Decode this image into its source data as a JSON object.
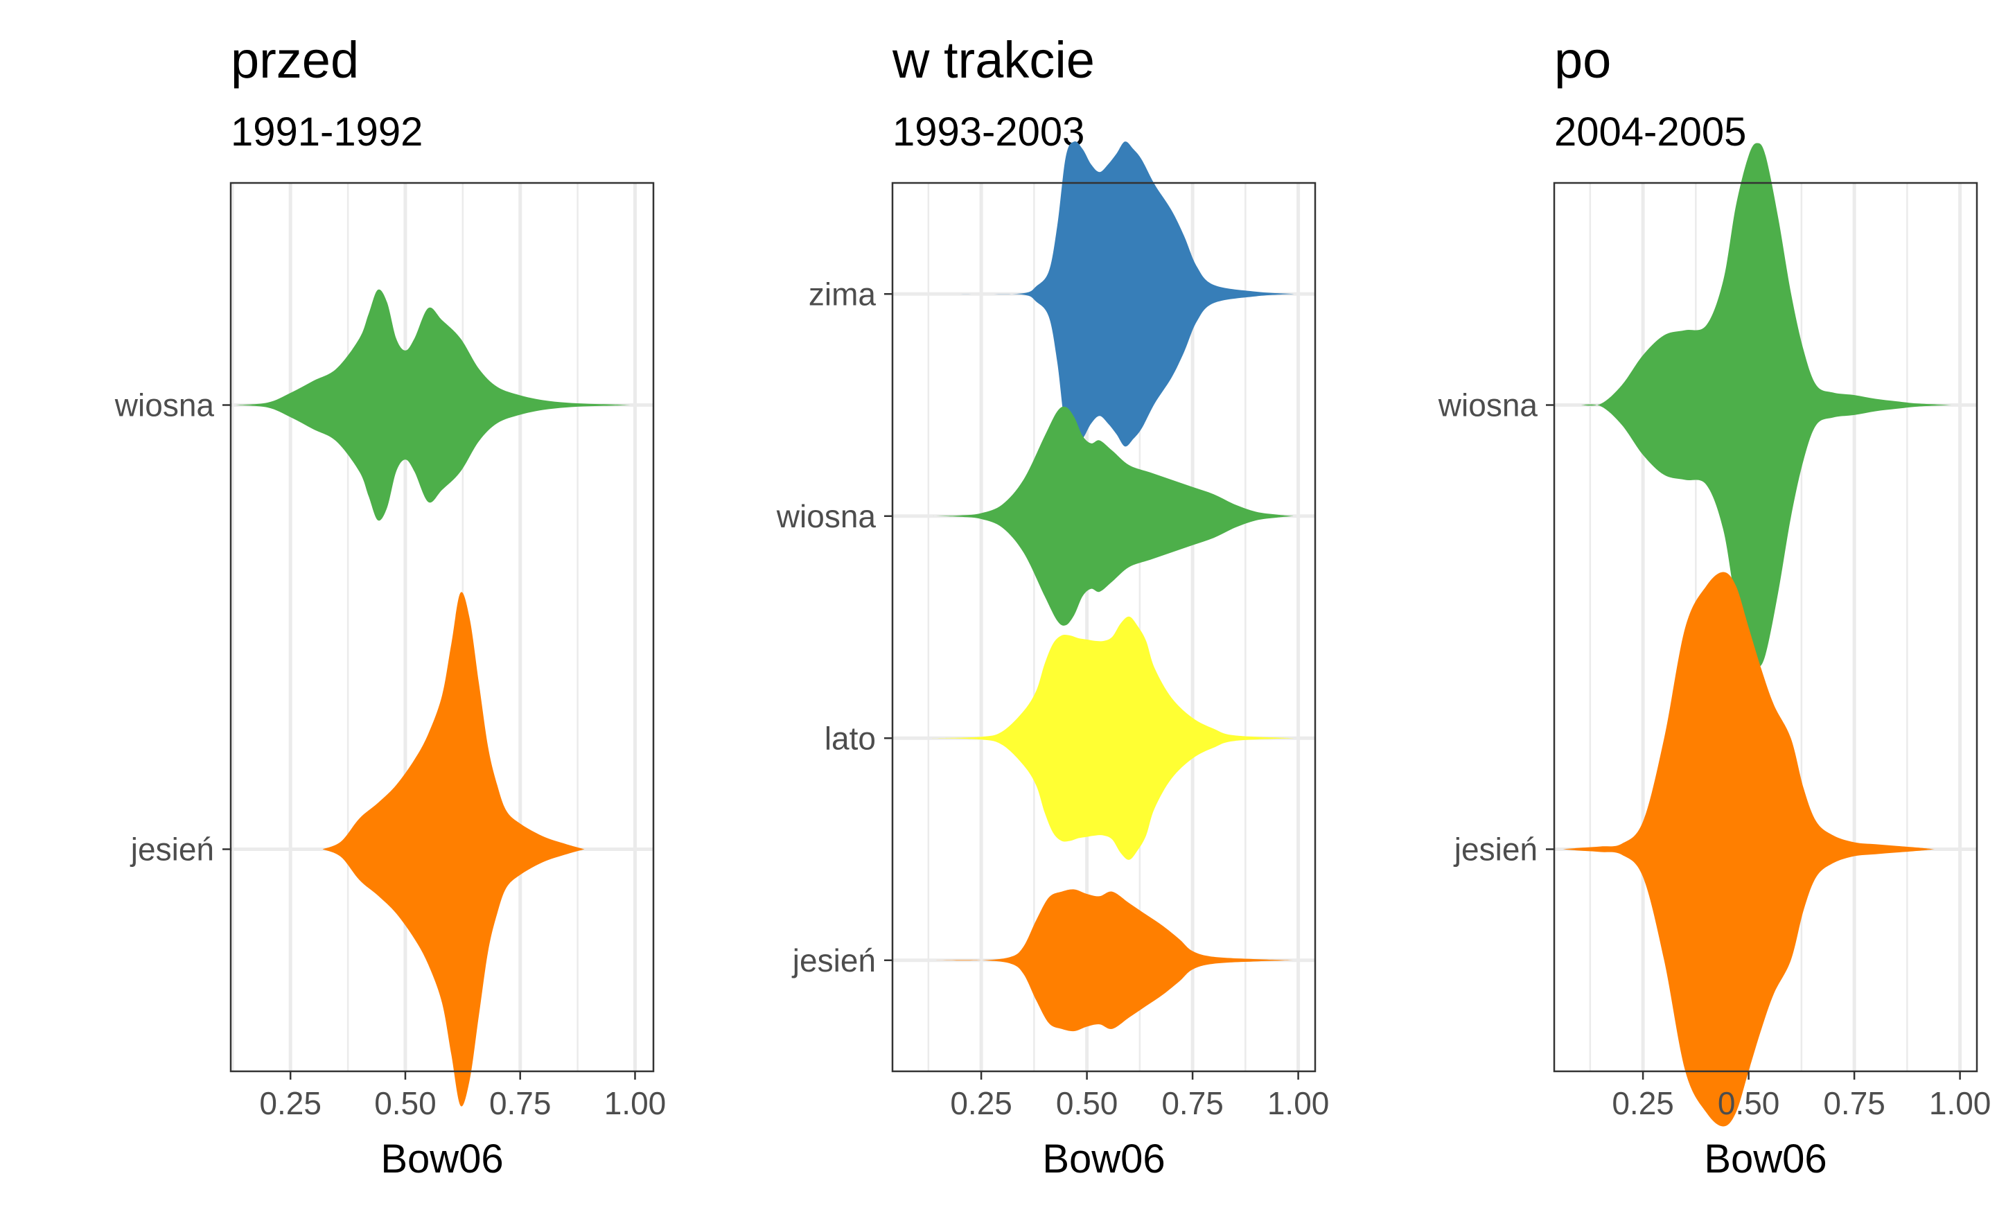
{
  "chart_data": [
    {
      "type": "violin",
      "title": "przed",
      "subtitle": "1991-1992",
      "xlabel": "Bow06",
      "ylabel": "",
      "xlim": [
        0.12,
        1.04
      ],
      "xticks": [
        "0.25",
        "0.50",
        "0.75",
        "1.00"
      ],
      "xtick_values": [
        0.25,
        0.5,
        0.75,
        1.0
      ],
      "categories": [
        "wiosna",
        "jesień"
      ],
      "grid": true,
      "legend": "none",
      "series": [
        {
          "category": "wiosna",
          "color": "#4DAF4A",
          "x": [
            0.13,
            0.2,
            0.25,
            0.3,
            0.35,
            0.4,
            0.42,
            0.44,
            0.46,
            0.48,
            0.5,
            0.52,
            0.55,
            0.58,
            0.62,
            0.66,
            0.7,
            0.75,
            0.8,
            0.85,
            0.9,
            0.95,
            0.99
          ],
          "half_width": [
            0.0,
            0.02,
            0.1,
            0.2,
            0.3,
            0.55,
            0.75,
            0.95,
            0.85,
            0.55,
            0.45,
            0.55,
            0.8,
            0.7,
            0.55,
            0.3,
            0.15,
            0.08,
            0.04,
            0.02,
            0.01,
            0.005,
            0.0
          ]
        },
        {
          "category": "jesień",
          "color": "#FF7F00",
          "x": [
            0.32,
            0.36,
            0.4,
            0.44,
            0.48,
            0.52,
            0.55,
            0.58,
            0.6,
            0.62,
            0.64,
            0.66,
            0.68,
            0.7,
            0.72,
            0.75,
            0.8,
            0.85,
            0.89
          ],
          "half_width": [
            0.0,
            0.03,
            0.12,
            0.18,
            0.25,
            0.35,
            0.45,
            0.6,
            0.8,
            1.0,
            0.9,
            0.65,
            0.4,
            0.25,
            0.15,
            0.1,
            0.05,
            0.02,
            0.0
          ]
        }
      ]
    },
    {
      "type": "violin",
      "title": "w trakcie",
      "subtitle": "1993-2003",
      "xlabel": "Bow06",
      "ylabel": "",
      "xlim": [
        0.04,
        1.04
      ],
      "xticks": [
        "0.25",
        "0.50",
        "0.75",
        "1.00"
      ],
      "xtick_values": [
        0.25,
        0.5,
        0.75,
        1.0
      ],
      "categories": [
        "zima",
        "wiosna",
        "lato",
        "jesień"
      ],
      "grid": true,
      "legend": "none",
      "series": [
        {
          "category": "zima",
          "color": "#377EB8",
          "x": [
            0.13,
            0.25,
            0.35,
            0.38,
            0.41,
            0.43,
            0.45,
            0.47,
            0.49,
            0.51,
            0.53,
            0.55,
            0.57,
            0.59,
            0.61,
            0.63,
            0.66,
            0.7,
            0.73,
            0.76,
            0.8,
            0.9,
            0.99
          ],
          "half_width": [
            0.0,
            0.0,
            0.005,
            0.05,
            0.15,
            0.45,
            0.9,
            1.0,
            0.95,
            0.85,
            0.8,
            0.85,
            0.92,
            1.0,
            0.95,
            0.88,
            0.72,
            0.55,
            0.38,
            0.18,
            0.06,
            0.015,
            0.0
          ]
        },
        {
          "category": "wiosna",
          "color": "#4DAF4A",
          "x": [
            0.13,
            0.2,
            0.25,
            0.3,
            0.35,
            0.4,
            0.43,
            0.45,
            0.47,
            0.49,
            0.51,
            0.53,
            0.56,
            0.6,
            0.65,
            0.7,
            0.75,
            0.8,
            0.85,
            0.9,
            0.95,
            0.99
          ],
          "half_width": [
            0.0,
            0.005,
            0.02,
            0.08,
            0.25,
            0.55,
            0.72,
            0.75,
            0.68,
            0.55,
            0.5,
            0.52,
            0.45,
            0.35,
            0.3,
            0.25,
            0.2,
            0.15,
            0.08,
            0.03,
            0.01,
            0.0
          ]
        },
        {
          "category": "lato",
          "color": "#FFFF33",
          "x": [
            0.13,
            0.25,
            0.3,
            0.35,
            0.38,
            0.4,
            0.42,
            0.44,
            0.46,
            0.48,
            0.5,
            0.52,
            0.54,
            0.56,
            0.58,
            0.6,
            0.62,
            0.64,
            0.66,
            0.7,
            0.75,
            0.8,
            0.85,
            0.99
          ],
          "half_width": [
            0.0,
            0.01,
            0.05,
            0.2,
            0.35,
            0.55,
            0.7,
            0.76,
            0.76,
            0.74,
            0.73,
            0.72,
            0.72,
            0.75,
            0.85,
            0.9,
            0.83,
            0.72,
            0.52,
            0.3,
            0.15,
            0.07,
            0.02,
            0.0
          ]
        },
        {
          "category": "jesień",
          "color": "#FF7F00",
          "x": [
            0.13,
            0.25,
            0.32,
            0.35,
            0.38,
            0.41,
            0.44,
            0.47,
            0.5,
            0.53,
            0.56,
            0.6,
            0.64,
            0.68,
            0.72,
            0.75,
            0.8,
            0.9,
            0.99
          ],
          "half_width": [
            0.0,
            0.0,
            0.03,
            0.12,
            0.35,
            0.55,
            0.6,
            0.62,
            0.58,
            0.56,
            0.6,
            0.5,
            0.4,
            0.3,
            0.18,
            0.08,
            0.03,
            0.01,
            0.0
          ]
        }
      ]
    },
    {
      "type": "violin",
      "title": "po",
      "subtitle": "2004-2005",
      "xlabel": "Bow06",
      "ylabel": "",
      "xlim": [
        0.04,
        1.04
      ],
      "xticks": [
        "0.25",
        "0.50",
        "0.75",
        "1.00"
      ],
      "xtick_values": [
        0.25,
        0.5,
        0.75,
        1.0
      ],
      "categories": [
        "wiosna",
        "jesień"
      ],
      "grid": true,
      "legend": "none",
      "series": [
        {
          "category": "wiosna",
          "color": "#4DAF4A",
          "x": [
            0.1,
            0.15,
            0.2,
            0.25,
            0.3,
            0.35,
            0.4,
            0.44,
            0.47,
            0.5,
            0.52,
            0.54,
            0.57,
            0.6,
            0.63,
            0.66,
            0.7,
            0.75,
            0.8,
            0.85,
            0.9,
            0.98
          ],
          "half_width": [
            0.0,
            0.005,
            0.08,
            0.2,
            0.28,
            0.3,
            0.32,
            0.5,
            0.8,
            1.0,
            1.05,
            1.0,
            0.75,
            0.45,
            0.22,
            0.08,
            0.05,
            0.04,
            0.025,
            0.015,
            0.006,
            0.0
          ]
        },
        {
          "category": "jesień",
          "color": "#FF7F00",
          "x": [
            0.06,
            0.1,
            0.15,
            0.2,
            0.25,
            0.3,
            0.35,
            0.4,
            0.44,
            0.47,
            0.5,
            0.53,
            0.56,
            0.6,
            0.63,
            0.66,
            0.7,
            0.75,
            0.8,
            0.85,
            0.9,
            0.94
          ],
          "half_width": [
            0.0,
            0.005,
            0.01,
            0.02,
            0.1,
            0.4,
            0.8,
            0.95,
            1.0,
            0.95,
            0.8,
            0.65,
            0.52,
            0.4,
            0.22,
            0.1,
            0.05,
            0.025,
            0.018,
            0.012,
            0.006,
            0.0
          ]
        }
      ]
    }
  ]
}
